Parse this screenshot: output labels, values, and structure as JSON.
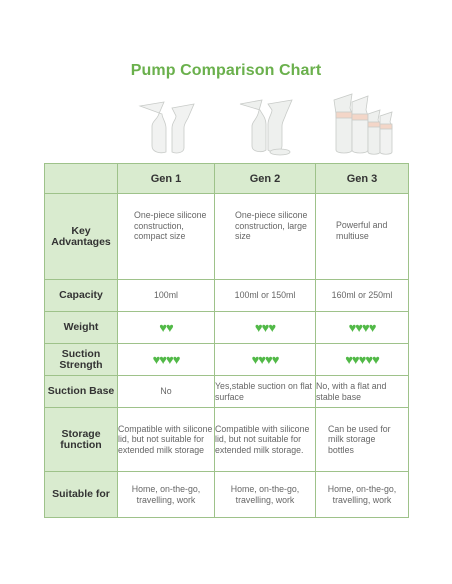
{
  "title": "Pump Comparison Chart",
  "accent_color": "#6ab04c",
  "heart_color": "#52b948",
  "header_fill": "#d9ebcf",
  "columns": [
    "Gen 1",
    "Gen 2",
    "Gen 3"
  ],
  "rows": [
    {
      "label": "Key Advantages",
      "cells": [
        "One-piece silicone construction, compact size",
        "One-piece silicone construction, large size",
        "Powerful and multiuse"
      ]
    },
    {
      "label": "Capacity",
      "cells": [
        "100ml",
        "100ml or 150ml",
        "160ml or 250ml"
      ]
    },
    {
      "label": "Weight",
      "hearts": [
        2,
        3,
        4
      ]
    },
    {
      "label": "Suction Strength",
      "hearts": [
        4,
        4,
        5
      ]
    },
    {
      "label": "Suction Base",
      "cells": [
        "No",
        "Yes,stable suction on flat surface",
        "No, with a flat and stable base"
      ]
    },
    {
      "label": "Storage function",
      "cells": [
        "Compatible with silicone lid, but not suitable for extended milk storage",
        "Compatible with silicone lid, but not suitable for extended milk storage.",
        "Can be used for milk storage bottles"
      ]
    },
    {
      "label": "Suitable for",
      "cells": [
        "Home, on-the-go, travelling, work",
        "Home, on-the-go, travelling, work",
        "Home, on-the-go, travelling, work"
      ]
    }
  ]
}
